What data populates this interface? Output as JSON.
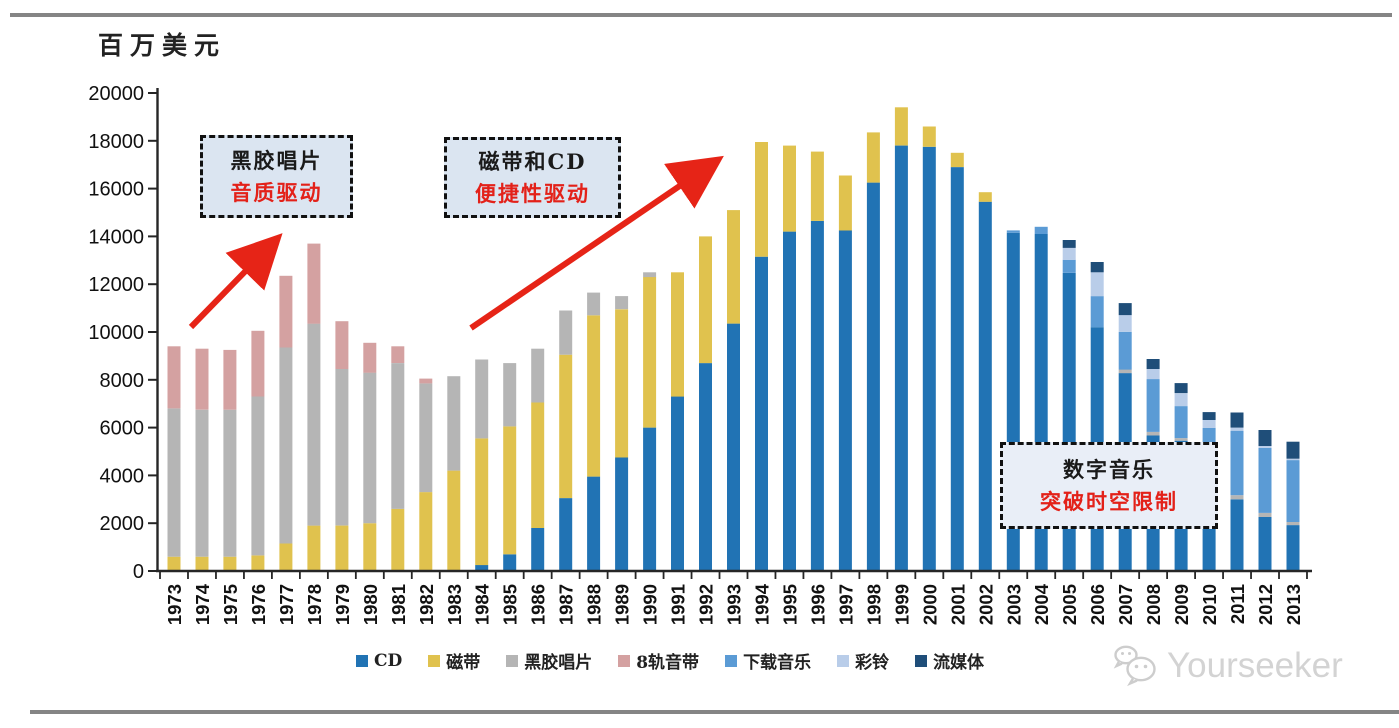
{
  "page": {
    "unit_label": "百万美元"
  },
  "chart_data": {
    "type": "bar",
    "stacked": true,
    "unit": "百万美元",
    "ylim": [
      0,
      20000
    ],
    "ytick_step": 2000,
    "grid": false,
    "legend_position": "bottom",
    "categories": [
      1973,
      1974,
      1975,
      1976,
      1977,
      1978,
      1979,
      1980,
      1981,
      1982,
      1983,
      1984,
      1985,
      1986,
      1987,
      1988,
      1989,
      1990,
      1991,
      1992,
      1993,
      1994,
      1995,
      1996,
      1997,
      1998,
      1999,
      2000,
      2001,
      2002,
      2003,
      2004,
      2005,
      2006,
      2007,
      2008,
      2009,
      2010,
      2011,
      2012,
      2013
    ],
    "series": [
      {
        "name": "CD",
        "color": "#2173b4",
        "values": [
          0,
          0,
          0,
          0,
          0,
          0,
          0,
          0,
          0,
          0,
          0,
          250,
          700,
          1800,
          3050,
          3950,
          4750,
          6000,
          7300,
          8700,
          10350,
          13150,
          14200,
          14650,
          14250,
          16250,
          17800,
          17750,
          16900,
          15450,
          14150,
          14100,
          12470,
          10200,
          8280,
          5670,
          5450,
          4390,
          3000,
          2260,
          1920
        ]
      },
      {
        "name": "磁带",
        "color": "#e0c24e",
        "values": [
          600,
          600,
          600,
          650,
          1150,
          1900,
          1900,
          2000,
          2600,
          3300,
          4200,
          5300,
          5350,
          5250,
          6000,
          6750,
          6200,
          6300,
          5200,
          5300,
          4750,
          4800,
          3600,
          2900,
          2300,
          2100,
          1600,
          850,
          600,
          400,
          0,
          0,
          0,
          0,
          0,
          0,
          0,
          0,
          0,
          0,
          0
        ]
      },
      {
        "name": "黑胶唱片",
        "color": "#b5b5b5",
        "values": [
          6200,
          6150,
          6150,
          6650,
          8200,
          8450,
          6550,
          6300,
          6100,
          4550,
          3950,
          3300,
          2650,
          2250,
          1850,
          950,
          550,
          200,
          0,
          0,
          0,
          0,
          0,
          0,
          0,
          0,
          0,
          0,
          0,
          0,
          0,
          0,
          0,
          0,
          150,
          150,
          110,
          90,
          170,
          170,
          130
        ]
      },
      {
        "name": "8轨音带",
        "color": "#d4a1a1",
        "values": [
          2600,
          2550,
          2500,
          2750,
          3000,
          3350,
          2000,
          1250,
          700,
          200,
          0,
          0,
          0,
          0,
          0,
          0,
          0,
          0,
          0,
          0,
          0,
          0,
          0,
          0,
          0,
          0,
          0,
          0,
          0,
          0,
          0,
          0,
          0,
          0,
          0,
          0,
          0,
          0,
          0,
          0,
          0
        ]
      },
      {
        "name": "下载音乐",
        "color": "#5b9bd5",
        "values": [
          0,
          0,
          0,
          0,
          0,
          0,
          0,
          0,
          0,
          0,
          0,
          0,
          0,
          0,
          0,
          0,
          0,
          0,
          0,
          0,
          0,
          0,
          0,
          0,
          0,
          0,
          0,
          0,
          0,
          0,
          100,
          300,
          550,
          1300,
          1580,
          2210,
          1340,
          1510,
          2700,
          2720,
          2590
        ]
      },
      {
        "name": "彩铃",
        "color": "#b9cde9",
        "values": [
          0,
          0,
          0,
          0,
          0,
          0,
          0,
          0,
          0,
          0,
          0,
          0,
          0,
          0,
          0,
          0,
          0,
          0,
          0,
          0,
          0,
          0,
          0,
          0,
          0,
          0,
          0,
          0,
          0,
          0,
          0,
          0,
          500,
          1000,
          700,
          420,
          540,
          330,
          130,
          80,
          60
        ]
      },
      {
        "name": "流媒体",
        "color": "#1f4e79",
        "values": [
          0,
          0,
          0,
          0,
          0,
          0,
          0,
          0,
          0,
          0,
          0,
          0,
          0,
          0,
          0,
          0,
          0,
          0,
          0,
          0,
          0,
          0,
          0,
          0,
          0,
          0,
          0,
          0,
          0,
          0,
          0,
          0,
          330,
          430,
          500,
          420,
          420,
          330,
          630,
          670,
          710
        ]
      }
    ]
  },
  "annotations": [
    {
      "line1": "黑胶唱片",
      "line2": "音质驱动"
    },
    {
      "line1": "磁带和CD",
      "line2": "便捷性驱动"
    },
    {
      "line1": "数字音乐",
      "line2": "突破时空限制"
    }
  ],
  "watermark": {
    "text": "Yourseeker",
    "icon": "wechat-icon"
  },
  "colors": {
    "arrow": "#e62417",
    "axis": "#262626",
    "callout_fill": "#dbe5f1",
    "red_text": "#e32119"
  }
}
